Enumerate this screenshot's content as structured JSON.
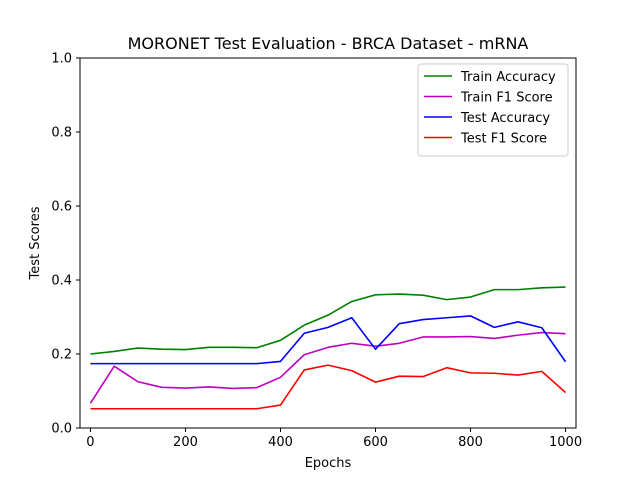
{
  "chart_data": {
    "type": "line",
    "title": "MORONET Test Evaluation - BRCA Dataset - mRNA",
    "xlabel": "Epochs",
    "ylabel": "Test Scores",
    "xlim": [
      -22,
      1022
    ],
    "ylim": [
      0,
      1.0
    ],
    "xticks": [
      0,
      200,
      400,
      600,
      800,
      1000
    ],
    "yticks": [
      0.0,
      0.2,
      0.4,
      0.6,
      0.8,
      1.0
    ],
    "xtick_labels": [
      "0",
      "200",
      "400",
      "600",
      "800",
      "1000"
    ],
    "ytick_labels": [
      "0.0",
      "0.2",
      "0.4",
      "0.6",
      "0.8",
      "1.0"
    ],
    "legend_position": "top-right",
    "grid": false,
    "x": [
      0,
      50,
      100,
      150,
      200,
      250,
      300,
      350,
      400,
      450,
      500,
      550,
      600,
      650,
      700,
      750,
      800,
      850,
      900,
      950,
      1000
    ],
    "series": [
      {
        "name": "Train Accuracy",
        "color": "#008000",
        "values": [
          0.2,
          0.207,
          0.216,
          0.213,
          0.212,
          0.218,
          0.218,
          0.217,
          0.237,
          0.278,
          0.305,
          0.342,
          0.36,
          0.362,
          0.359,
          0.347,
          0.354,
          0.374,
          0.374,
          0.379,
          0.381
        ]
      },
      {
        "name": "Train F1 Score",
        "color": "#bf00bf",
        "values": [
          0.067,
          0.167,
          0.125,
          0.11,
          0.108,
          0.111,
          0.107,
          0.109,
          0.137,
          0.198,
          0.218,
          0.229,
          0.221,
          0.229,
          0.246,
          0.246,
          0.247,
          0.242,
          0.251,
          0.258,
          0.255
        ]
      },
      {
        "name": "Test Accuracy",
        "color": "#0000ff",
        "values": [
          0.174,
          0.174,
          0.174,
          0.174,
          0.174,
          0.174,
          0.174,
          0.174,
          0.18,
          0.256,
          0.272,
          0.298,
          0.213,
          0.282,
          0.293,
          0.298,
          0.303,
          0.272,
          0.287,
          0.271,
          0.179
        ]
      },
      {
        "name": "Test F1 Score",
        "color": "#ff0000",
        "values": [
          0.052,
          0.052,
          0.052,
          0.052,
          0.052,
          0.052,
          0.052,
          0.052,
          0.062,
          0.157,
          0.17,
          0.155,
          0.124,
          0.14,
          0.139,
          0.163,
          0.149,
          0.148,
          0.143,
          0.153,
          0.096
        ]
      }
    ]
  }
}
